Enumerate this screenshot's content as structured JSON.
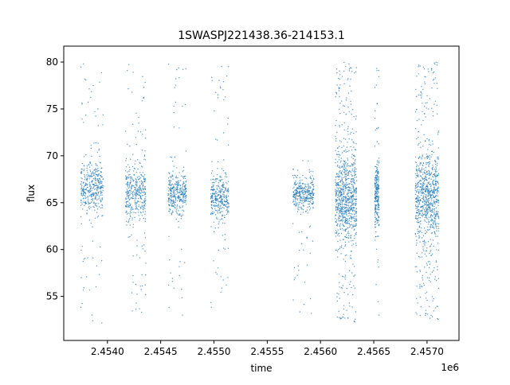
{
  "chart_data": {
    "type": "scatter",
    "title": "1SWASPJ221438.36-214153.1",
    "xlabel": "time",
    "ylabel": "flux",
    "x_offset_label": "1e6",
    "xlim": [
      2453590,
      2457300
    ],
    "ylim": [
      50.3,
      81.7
    ],
    "x_ticks": [
      2454000,
      2454500,
      2455000,
      2455500,
      2456000,
      2456500,
      2457000
    ],
    "x_tick_labels": [
      "2.4540",
      "2.4545",
      "2.4550",
      "2.4555",
      "2.4560",
      "2.4565",
      "2.4570"
    ],
    "y_ticks": [
      55,
      60,
      65,
      70,
      75,
      80
    ],
    "y_tick_labels": [
      "55",
      "60",
      "65",
      "70",
      "75",
      "80"
    ],
    "grid": false,
    "marker_color": "#1f77b4",
    "point_clusters": [
      {
        "time_range": [
          2453750,
          2453960
        ],
        "median_flux": 66.5,
        "core_spread": 1.3,
        "flux_range": [
          52,
          80
        ],
        "outlier_fraction": 0.18,
        "approx_points": 420
      },
      {
        "time_range": [
          2454170,
          2454360
        ],
        "median_flux": 66.0,
        "core_spread": 1.5,
        "flux_range": [
          53,
          80
        ],
        "outlier_fraction": 0.2,
        "approx_points": 420
      },
      {
        "time_range": [
          2454570,
          2454740
        ],
        "median_flux": 66.0,
        "core_spread": 1.1,
        "flux_range": [
          52.5,
          80
        ],
        "outlier_fraction": 0.18,
        "approx_points": 360
      },
      {
        "time_range": [
          2454970,
          2455140
        ],
        "median_flux": 65.5,
        "core_spread": 1.2,
        "flux_range": [
          52,
          80
        ],
        "outlier_fraction": 0.16,
        "approx_points": 360
      },
      {
        "time_range": [
          2455740,
          2455940
        ],
        "median_flux": 66.0,
        "core_spread": 0.9,
        "flux_range": [
          53,
          70
        ],
        "outlier_fraction": 0.12,
        "approx_points": 360
      },
      {
        "time_range": [
          2456140,
          2456340
        ],
        "median_flux": 65.5,
        "core_spread": 2.2,
        "flux_range": [
          52,
          80
        ],
        "outlier_fraction": 0.3,
        "approx_points": 900
      },
      {
        "time_range": [
          2456510,
          2456550
        ],
        "median_flux": 66.0,
        "core_spread": 1.8,
        "flux_range": [
          53,
          80
        ],
        "outlier_fraction": 0.15,
        "approx_points": 250
      },
      {
        "time_range": [
          2456890,
          2457110
        ],
        "median_flux": 65.5,
        "core_spread": 2.2,
        "flux_range": [
          52.5,
          80
        ],
        "outlier_fraction": 0.3,
        "approx_points": 900
      }
    ]
  }
}
